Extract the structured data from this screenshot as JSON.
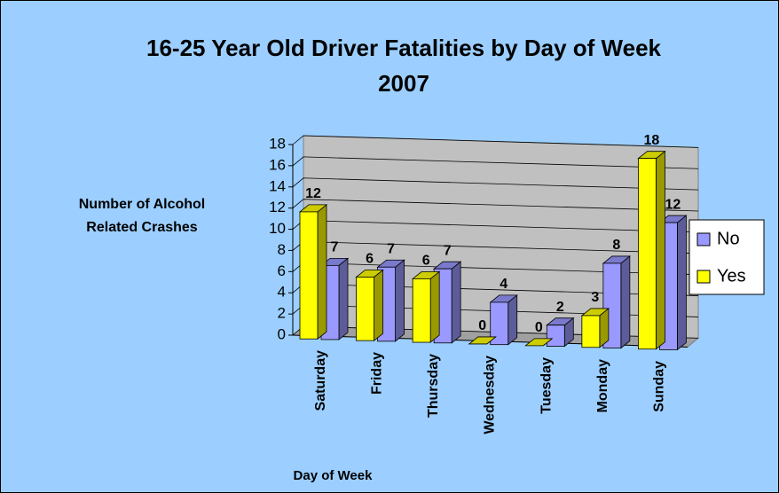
{
  "chart_data": {
    "type": "bar3d",
    "title": "16-25 Year Old Driver Fatalities by Day of Week",
    "subtitle": "2007",
    "y_label": "Number of Alcohol Related Crashes",
    "x_label": "Day of Week",
    "categories": [
      "Saturday",
      "Friday",
      "Thursday",
      "Wednesday",
      "Tuesday",
      "Monday",
      "Sunday"
    ],
    "series": [
      {
        "name": "No",
        "color": "#9999ff",
        "values": [
          7,
          7,
          7,
          4,
          2,
          8,
          12
        ]
      },
      {
        "name": "Yes",
        "color": "#ffff00",
        "values": [
          12,
          6,
          6,
          0,
          0,
          3,
          18
        ]
      }
    ],
    "ylim": [
      0,
      18
    ],
    "yticks": [
      0,
      2,
      4,
      6,
      8,
      10,
      12,
      14,
      16,
      18
    ],
    "grid": true,
    "legend": "right"
  }
}
